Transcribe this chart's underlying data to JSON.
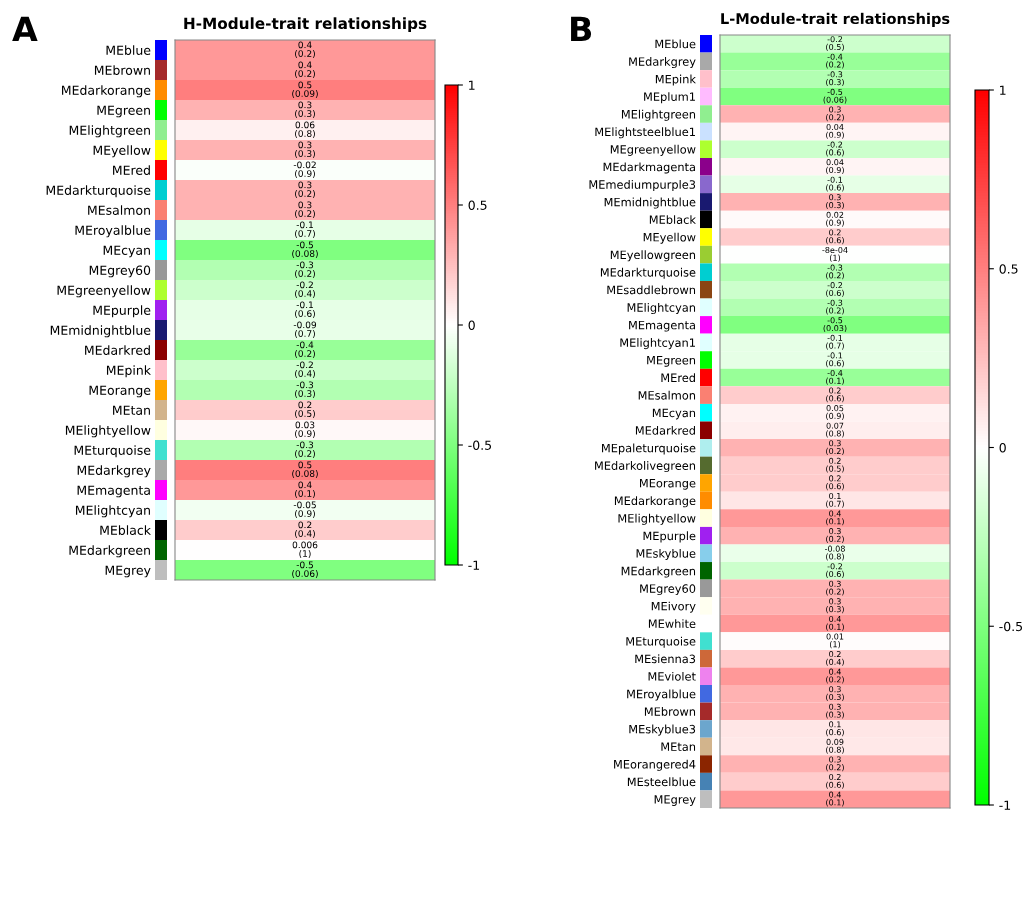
{
  "chart_data": [
    {
      "type": "heatmap",
      "title": "H-Module-trait relationships",
      "annotations": [
        "A"
      ],
      "categories": [
        null
      ],
      "y_categories": [
        "MEblue",
        "MEbrown",
        "MEdarkorange",
        "MEgreen",
        "MElightgreen",
        "MEyellow",
        "MEred",
        "MEdarkturquoise",
        "MEsalmon",
        "MEroyalblue",
        "MEcyan",
        "MEgrey60",
        "MEgreenyellow",
        "MEpurple",
        "MEmidnightblue",
        "MEdarkred",
        "MEpink",
        "MEorange",
        "MEtan",
        "MElightyellow",
        "MEturquoise",
        "MEdarkgrey",
        "MEmagenta",
        "MElightcyan",
        "MEblack",
        "MEdarkgreen",
        "MEgrey"
      ],
      "colors": [
        "#0000ff",
        "#a52a2a",
        "#ff8c00",
        "#00ff00",
        "#90ee90",
        "#ffff00",
        "#ff0000",
        "#00ced1",
        "#fa8072",
        "#4169e1",
        "#00ffff",
        "#999999",
        "#adff2f",
        "#a020f0",
        "#191970",
        "#8b0000",
        "#ffc0cb",
        "#ffa500",
        "#d2b48c",
        "#ffffe0",
        "#40e0d0",
        "#a9a9a9",
        "#ff00ff",
        "#e0ffff",
        "#000000",
        "#006400",
        "#bebebe"
      ],
      "cells": [
        [
          0.4
        ],
        [
          0.4
        ],
        [
          0.5
        ],
        [
          0.3
        ],
        [
          0.06
        ],
        [
          0.3
        ],
        [
          -0.02
        ],
        [
          0.3
        ],
        [
          0.3
        ],
        [
          -0.1
        ],
        [
          -0.5
        ],
        [
          -0.3
        ],
        [
          -0.2
        ],
        [
          -0.1
        ],
        [
          -0.09
        ],
        [
          -0.4
        ],
        [
          -0.2
        ],
        [
          -0.3
        ],
        [
          0.2
        ],
        [
          0.03
        ],
        [
          -0.3
        ],
        [
          0.5
        ],
        [
          0.4
        ],
        [
          -0.05
        ],
        [
          0.2
        ],
        [
          0.006
        ],
        [
          -0.5
        ]
      ],
      "cell_labels": [
        [
          "0.4\n(0.2)"
        ],
        [
          "0.4\n(0.2)"
        ],
        [
          "0.5\n(0.09)"
        ],
        [
          "0.3\n(0.3)"
        ],
        [
          "0.06\n(0.8)"
        ],
        [
          "0.3\n(0.3)"
        ],
        [
          "-0.02\n(0.9)"
        ],
        [
          "0.3\n(0.2)"
        ],
        [
          "0.3\n(0.2)"
        ],
        [
          "-0.1\n(0.7)"
        ],
        [
          "-0.5\n(0.08)"
        ],
        [
          "-0.3\n(0.2)"
        ],
        [
          "-0.2\n(0.4)"
        ],
        [
          "-0.1\n(0.6)"
        ],
        [
          "-0.09\n(0.7)"
        ],
        [
          "-0.4\n(0.2)"
        ],
        [
          "-0.2\n(0.4)"
        ],
        [
          "-0.3\n(0.3)"
        ],
        [
          "0.2\n(0.5)"
        ],
        [
          "0.03\n(0.9)"
        ],
        [
          "-0.3\n(0.2)"
        ],
        [
          "0.5\n(0.08)"
        ],
        [
          "0.4\n(0.1)"
        ],
        [
          "-0.05\n(0.9)"
        ],
        [
          "0.2\n(0.4)"
        ],
        [
          "0.006\n(1)"
        ],
        [
          "-0.5\n(0.06)"
        ]
      ],
      "clim": [
        -1,
        1
      ],
      "cticks": [
        -1,
        -0.5,
        0,
        0.5,
        1
      ]
    },
    {
      "type": "heatmap",
      "title": "L-Module-trait relationships",
      "annotations": [
        "B"
      ],
      "categories": [
        null
      ],
      "y_categories": [
        "MEblue",
        "MEdarkgrey",
        "MEpink",
        "MEplum1",
        "MElightgreen",
        "MElightsteelblue1",
        "MEgreenyellow",
        "MEdarkmagenta",
        "MEmediumpurple3",
        "MEmidnightblue",
        "MEblack",
        "MEyellow",
        "MEyellowgreen",
        "MEdarkturquoise",
        "MEsaddlebrown",
        "MElightcyan",
        "MEmagenta",
        "MElightcyan1",
        "MEgreen",
        "MEred",
        "MEsalmon",
        "MEcyan",
        "MEdarkred",
        "MEpaleturquoise",
        "MEdarkolivegreen",
        "MEorange",
        "MEdarkorange",
        "MElightyellow",
        "MEpurple",
        "MEskyblue",
        "MEdarkgreen",
        "MEgrey60",
        "MEivory",
        "MEwhite",
        "MEturquoise",
        "MEsienna3",
        "MEviolet",
        "MEroyalblue",
        "MEbrown",
        "MEskyblue3",
        "MEtan",
        "MEorangered4",
        "MEsteelblue",
        "MEgrey"
      ],
      "colors": [
        "#0000ff",
        "#a9a9a9",
        "#ffc0cb",
        "#ffbbff",
        "#90ee90",
        "#cae1ff",
        "#adff2f",
        "#8b008b",
        "#8968cd",
        "#191970",
        "#000000",
        "#ffff00",
        "#9acd32",
        "#00ced1",
        "#8b4513",
        "#e0ffff",
        "#ff00ff",
        "#e0ffff",
        "#00ff00",
        "#ff0000",
        "#fa8072",
        "#00ffff",
        "#8b0000",
        "#afeeee",
        "#556b2f",
        "#ffa500",
        "#ff8c00",
        "#ffffe0",
        "#a020f0",
        "#87ceeb",
        "#006400",
        "#999999",
        "#fffff0",
        "#ffffff",
        "#40e0d0",
        "#cd6839",
        "#ee82ee",
        "#4169e1",
        "#a52a2a",
        "#6ca6cd",
        "#d2b48c",
        "#8b2500",
        "#4682b4",
        "#bebebe"
      ],
      "cells": [
        [
          -0.2
        ],
        [
          -0.4
        ],
        [
          -0.3
        ],
        [
          -0.5
        ],
        [
          0.3
        ],
        [
          0.04
        ],
        [
          -0.2
        ],
        [
          0.04
        ],
        [
          -0.1
        ],
        [
          0.3
        ],
        [
          0.02
        ],
        [
          0.2
        ],
        [
          -0.0008
        ],
        [
          -0.3
        ],
        [
          -0.2
        ],
        [
          -0.3
        ],
        [
          -0.5
        ],
        [
          -0.1
        ],
        [
          -0.1
        ],
        [
          -0.4
        ],
        [
          0.2
        ],
        [
          0.05
        ],
        [
          0.07
        ],
        [
          0.3
        ],
        [
          0.2
        ],
        [
          0.2
        ],
        [
          0.1
        ],
        [
          0.4
        ],
        [
          0.3
        ],
        [
          -0.08
        ],
        [
          -0.2
        ],
        [
          0.3
        ],
        [
          0.3
        ],
        [
          0.4
        ],
        [
          0.01
        ],
        [
          0.2
        ],
        [
          0.4
        ],
        [
          0.3
        ],
        [
          0.3
        ],
        [
          0.1
        ],
        [
          0.09
        ],
        [
          0.3
        ],
        [
          0.2
        ],
        [
          0.4
        ]
      ],
      "cell_labels": [
        [
          "-0.2\n(0.5)"
        ],
        [
          "-0.4\n(0.2)"
        ],
        [
          "-0.3\n(0.3)"
        ],
        [
          "-0.5\n(0.06)"
        ],
        [
          "0.3\n(0.2)"
        ],
        [
          "0.04\n(0.9)"
        ],
        [
          "-0.2\n(0.6)"
        ],
        [
          "0.04\n(0.9)"
        ],
        [
          "-0.1\n(0.6)"
        ],
        [
          "0.3\n(0.3)"
        ],
        [
          "0.02\n(0.9)"
        ],
        [
          "0.2\n(0.6)"
        ],
        [
          "-8e-04\n(1)"
        ],
        [
          "-0.3\n(0.2)"
        ],
        [
          "-0.2\n(0.6)"
        ],
        [
          "-0.3\n(0.2)"
        ],
        [
          "-0.5\n(0.03)"
        ],
        [
          "-0.1\n(0.7)"
        ],
        [
          "-0.1\n(0.6)"
        ],
        [
          "-0.4\n(0.1)"
        ],
        [
          "0.2\n(0.6)"
        ],
        [
          "0.05\n(0.9)"
        ],
        [
          "0.07\n(0.8)"
        ],
        [
          "0.3\n(0.2)"
        ],
        [
          "0.2\n(0.5)"
        ],
        [
          "0.2\n(0.6)"
        ],
        [
          "0.1\n(0.7)"
        ],
        [
          "0.4\n(0.1)"
        ],
        [
          "0.3\n(0.2)"
        ],
        [
          "-0.08\n(0.8)"
        ],
        [
          "-0.2\n(0.6)"
        ],
        [
          "0.3\n(0.2)"
        ],
        [
          "0.3\n(0.3)"
        ],
        [
          "0.4\n(0.1)"
        ],
        [
          "0.01\n(1)"
        ],
        [
          "0.2\n(0.4)"
        ],
        [
          "0.4\n(0.2)"
        ],
        [
          "0.3\n(0.3)"
        ],
        [
          "0.3\n(0.3)"
        ],
        [
          "0.1\n(0.6)"
        ],
        [
          "0.09\n(0.8)"
        ],
        [
          "0.3\n(0.2)"
        ],
        [
          "0.2\n(0.6)"
        ],
        [
          "0.4\n(0.1)"
        ]
      ],
      "clim": [
        -1,
        1
      ],
      "cticks": [
        -1,
        -0.5,
        0,
        0.5,
        1
      ]
    }
  ]
}
